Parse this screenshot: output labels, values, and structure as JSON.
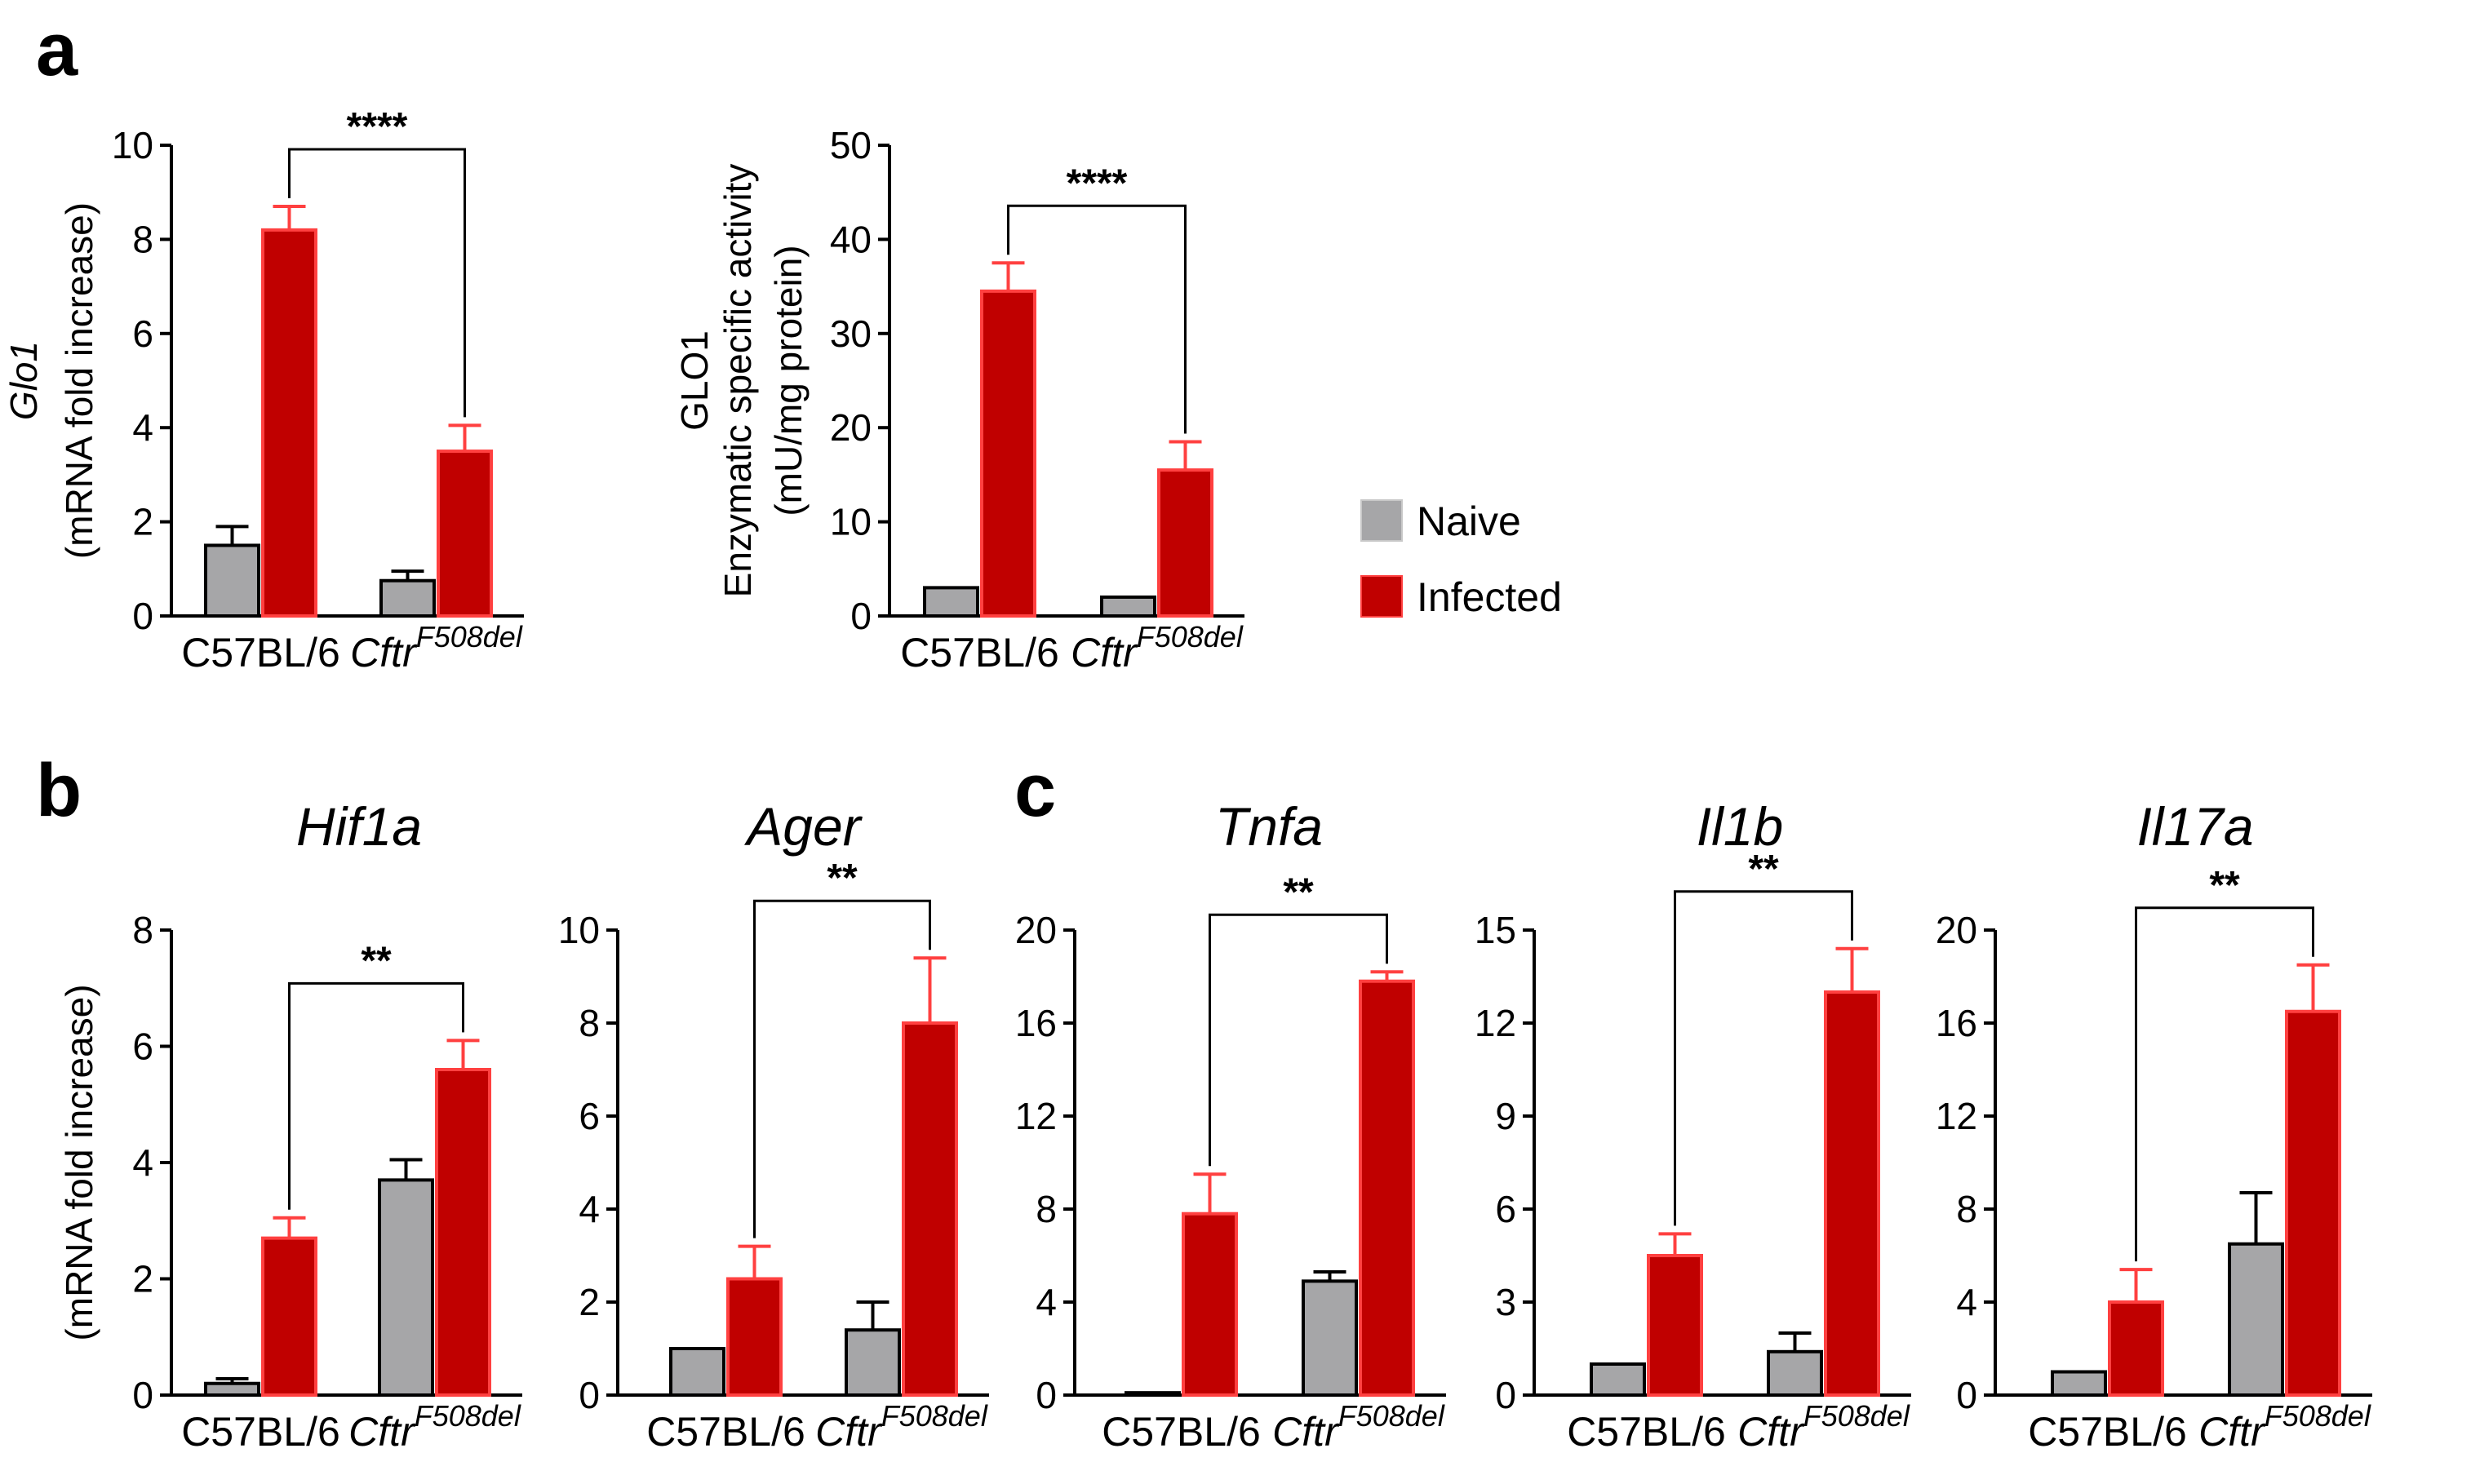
{
  "panel_letters": [
    "a",
    "b",
    "c"
  ],
  "legend": {
    "items": [
      {
        "label": "Naive",
        "color": "#a6a6a8"
      },
      {
        "label": "Infected",
        "color": "#c00000"
      }
    ]
  },
  "colors": {
    "naive_fill": "#a6a6a8",
    "infected_fill": "#c00000",
    "infected_edge": "#ff4040",
    "axis": "#000000"
  },
  "chart_data": [
    {
      "id": "a1",
      "type": "bar",
      "title": "",
      "ylabel_italic": "Glo1",
      "ylabel_lines": [
        "(mRNA fold increase)"
      ],
      "ylim": [
        0,
        10
      ],
      "yticks": [
        "0",
        "2",
        "4",
        "6",
        "8",
        "10"
      ],
      "categories": [
        {
          "label": "C57BL/6"
        },
        {
          "label": "Cftr",
          "sup": "F508del",
          "italic": true
        }
      ],
      "series": [
        {
          "name": "Naive",
          "values": [
            1.5,
            0.75
          ],
          "errors": [
            0.4,
            0.2
          ]
        },
        {
          "name": "Infected",
          "values": [
            8.2,
            3.5
          ],
          "errors": [
            0.5,
            0.55
          ]
        }
      ],
      "significance": "****"
    },
    {
      "id": "a2",
      "type": "bar",
      "title": "",
      "ylabel_lines": [
        "GLO1",
        "Enzymatic specific activity",
        "(mU/mg protein)"
      ],
      "ylim": [
        0,
        50
      ],
      "yticks": [
        "0",
        "10",
        "20",
        "30",
        "40",
        "50"
      ],
      "categories": [
        {
          "label": "C57BL/6"
        },
        {
          "label": "Cftr",
          "sup": "F508del",
          "italic": true
        }
      ],
      "series": [
        {
          "name": "Naive",
          "values": [
            3.0,
            2.0
          ],
          "errors": [
            0,
            0
          ]
        },
        {
          "name": "Infected",
          "values": [
            34.5,
            15.5
          ],
          "errors": [
            3.0,
            3.0
          ]
        }
      ],
      "significance": "****"
    },
    {
      "id": "b1",
      "type": "bar",
      "title": "Hif1a",
      "ylabel_lines": [
        "(mRNA fold increase)"
      ],
      "ylim": [
        0,
        8
      ],
      "yticks": [
        "0",
        "2",
        "4",
        "6",
        "8"
      ],
      "categories": [
        {
          "label": "C57BL/6"
        },
        {
          "label": "Cftr",
          "sup": "F508del",
          "italic": true
        }
      ],
      "series": [
        {
          "name": "Naive",
          "values": [
            0.2,
            3.7
          ],
          "errors": [
            0.08,
            0.35
          ]
        },
        {
          "name": "Infected",
          "values": [
            2.7,
            5.6
          ],
          "errors": [
            0.35,
            0.5
          ]
        }
      ],
      "significance": "**"
    },
    {
      "id": "b2",
      "type": "bar",
      "title": "Ager",
      "ylim": [
        0,
        10
      ],
      "yticks": [
        "0",
        "2",
        "4",
        "6",
        "8",
        "10"
      ],
      "categories": [
        {
          "label": "C57BL/6"
        },
        {
          "label": "Cftr",
          "sup": "F508del",
          "italic": true
        }
      ],
      "series": [
        {
          "name": "Naive",
          "values": [
            1.0,
            1.4
          ],
          "errors": [
            0,
            0.6
          ]
        },
        {
          "name": "Infected",
          "values": [
            2.5,
            8.0
          ],
          "errors": [
            0.7,
            1.4
          ]
        }
      ],
      "significance": "**"
    },
    {
      "id": "c1",
      "type": "bar",
      "title": "Tnfa",
      "ylim": [
        0,
        20
      ],
      "yticks": [
        "0",
        "4",
        "8",
        "12",
        "16",
        "20"
      ],
      "categories": [
        {
          "label": "C57BL/6"
        },
        {
          "label": "Cftr",
          "sup": "F508del",
          "italic": true
        }
      ],
      "series": [
        {
          "name": "Naive",
          "values": [
            0.1,
            4.9
          ],
          "errors": [
            0,
            0.4
          ]
        },
        {
          "name": "Infected",
          "values": [
            7.8,
            17.8
          ],
          "errors": [
            1.7,
            0.4
          ]
        }
      ],
      "significance": "**"
    },
    {
      "id": "c2",
      "type": "bar",
      "title": "Il1b",
      "ylim": [
        0,
        15
      ],
      "yticks": [
        "0",
        "3",
        "6",
        "9",
        "12",
        "15"
      ],
      "categories": [
        {
          "label": "C57BL/6"
        },
        {
          "label": "Cftr",
          "sup": "F508del",
          "italic": true
        }
      ],
      "series": [
        {
          "name": "Naive",
          "values": [
            1.0,
            1.4
          ],
          "errors": [
            0,
            0.6
          ]
        },
        {
          "name": "Infected",
          "values": [
            4.5,
            13.0
          ],
          "errors": [
            0.7,
            1.4
          ]
        }
      ],
      "significance": "**"
    },
    {
      "id": "c3",
      "type": "bar",
      "title": "Il17a",
      "ylim": [
        0,
        20
      ],
      "yticks": [
        "0",
        "4",
        "8",
        "12",
        "16",
        "20"
      ],
      "categories": [
        {
          "label": "C57BL/6"
        },
        {
          "label": "Cftr",
          "sup": "F508del",
          "italic": true
        }
      ],
      "series": [
        {
          "name": "Naive",
          "values": [
            1.0,
            6.5
          ],
          "errors": [
            0,
            2.2
          ]
        },
        {
          "name": "Infected",
          "values": [
            4.0,
            16.5
          ],
          "errors": [
            1.4,
            2.0
          ]
        }
      ],
      "significance": "**"
    }
  ]
}
